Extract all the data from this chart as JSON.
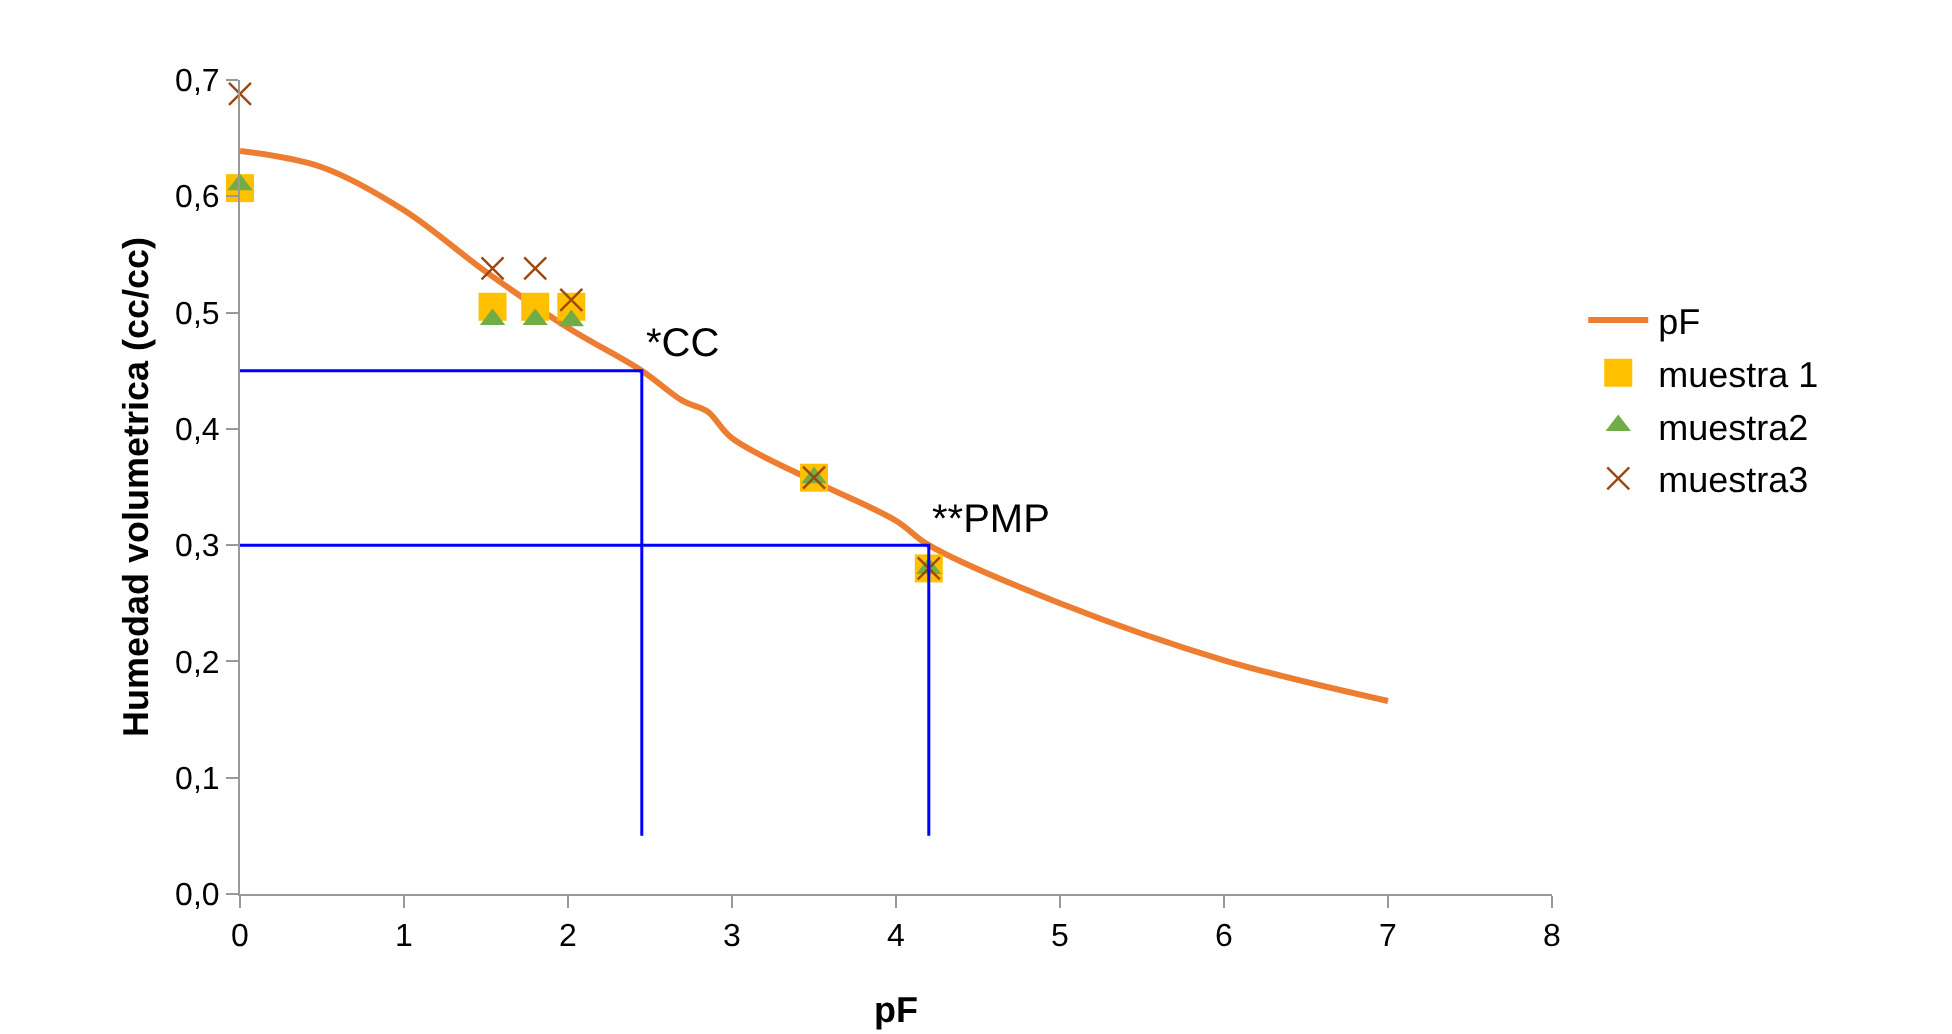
{
  "chart_data": {
    "type": "scatter",
    "xlabel": "pF",
    "ylabel": "Humedad volumetrica (cc/cc)",
    "xlim": [
      0,
      8
    ],
    "xticks": [
      0,
      1,
      2,
      3,
      4,
      5,
      6,
      7,
      8
    ],
    "ylim": [
      0,
      0.7
    ],
    "yticks": [
      {
        "value": 0,
        "label": "0,0"
      },
      {
        "value": 0.1,
        "label": "0,1"
      },
      {
        "value": 0.2,
        "label": "0,2"
      },
      {
        "value": 0.3,
        "label": "0,3"
      },
      {
        "value": 0.4,
        "label": "0,4"
      },
      {
        "value": 0.5,
        "label": "0,5"
      },
      {
        "value": 0.6,
        "label": "0,6"
      },
      {
        "value": 0.7,
        "label": "0,7"
      }
    ],
    "grid": false,
    "legend": "right",
    "annotations": [
      {
        "text": "*CC",
        "x": 2.45,
        "y": 0.45
      },
      {
        "text": "**PMP",
        "x": 4.2,
        "y": 0.3
      }
    ],
    "series": [
      {
        "name": "pF",
        "type": "line",
        "marker": "none",
        "color": "#ed7d31",
        "x": [
          0,
          0.5,
          1,
          1.5,
          2,
          2.45,
          2.7,
          2.85,
          3,
          3.5,
          4,
          4.2,
          5,
          6,
          7
        ],
        "values": [
          0.639,
          0.625,
          0.588,
          0.535,
          0.487,
          0.45,
          0.424,
          0.415,
          0.392,
          0.355,
          0.321,
          0.3,
          0.25,
          0.201,
          0.166
        ]
      },
      {
        "name": "muestra 1",
        "type": "scatter",
        "marker": "square",
        "color": "#ffc000",
        "x": [
          0,
          1.54,
          1.8,
          2.02,
          3.5,
          4.2
        ],
        "values": [
          0.607,
          0.505,
          0.505,
          0.505,
          0.358,
          0.28
        ]
      },
      {
        "name": "muestra2",
        "type": "scatter",
        "marker": "triangle",
        "color": "#70ad47",
        "x": [
          0,
          1.54,
          1.8,
          2.02,
          3.5,
          4.2
        ],
        "values": [
          0.61,
          0.494,
          0.494,
          0.493,
          0.358,
          0.28
        ]
      },
      {
        "name": "muestra3",
        "type": "scatter",
        "marker": "cross",
        "color": "#9e480e",
        "x": [
          0,
          1.54,
          1.8,
          2.02,
          3.5,
          4.2
        ],
        "values": [
          0.688,
          0.538,
          0.538,
          0.511,
          0.358,
          0.28
        ]
      },
      {
        "type": "line",
        "marker": "none",
        "color": "#0000ff",
        "x": [
          0,
          2.45,
          2.45
        ],
        "values": [
          0.45,
          0.45,
          0.05
        ]
      },
      {
        "type": "line",
        "marker": "none",
        "color": "#0000ff",
        "x": [
          0,
          4.2,
          4.2
        ],
        "values": [
          0.3,
          0.3,
          0.05
        ]
      }
    ]
  }
}
